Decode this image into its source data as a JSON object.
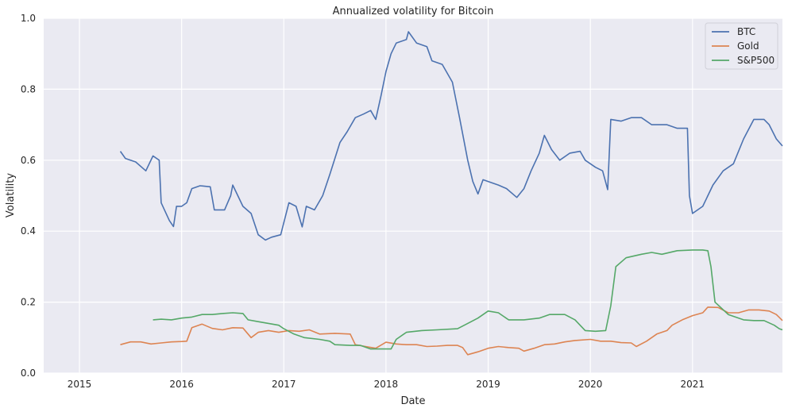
{
  "chart_data": {
    "type": "line",
    "title": "Annualized volatility for Bitcoin",
    "xlabel": "Date",
    "ylabel": "Volatility",
    "xlim": [
      2014.65,
      2021.88
    ],
    "ylim": [
      0.0,
      1.0
    ],
    "x_ticks": [
      "2015",
      "2016",
      "2017",
      "2018",
      "2019",
      "2020",
      "2021"
    ],
    "y_ticks": [
      "0.0",
      "0.2",
      "0.4",
      "0.6",
      "0.8",
      "1.0"
    ],
    "grid": true,
    "legend_position": "top-right",
    "series": [
      {
        "name": "BTC",
        "color": "#4c72b0",
        "points": [
          [
            2015.4,
            0.625
          ],
          [
            2015.45,
            0.605
          ],
          [
            2015.55,
            0.595
          ],
          [
            2015.65,
            0.57
          ],
          [
            2015.72,
            0.612
          ],
          [
            2015.78,
            0.6
          ],
          [
            2015.8,
            0.48
          ],
          [
            2015.88,
            0.43
          ],
          [
            2015.92,
            0.413
          ],
          [
            2015.95,
            0.47
          ],
          [
            2016.0,
            0.47
          ],
          [
            2016.05,
            0.48
          ],
          [
            2016.1,
            0.52
          ],
          [
            2016.18,
            0.528
          ],
          [
            2016.28,
            0.525
          ],
          [
            2016.32,
            0.46
          ],
          [
            2016.42,
            0.46
          ],
          [
            2016.48,
            0.5
          ],
          [
            2016.5,
            0.53
          ],
          [
            2016.55,
            0.5
          ],
          [
            2016.6,
            0.47
          ],
          [
            2016.68,
            0.45
          ],
          [
            2016.75,
            0.39
          ],
          [
            2016.82,
            0.375
          ],
          [
            2016.88,
            0.383
          ],
          [
            2016.97,
            0.39
          ],
          [
            2017.05,
            0.48
          ],
          [
            2017.12,
            0.47
          ],
          [
            2017.18,
            0.412
          ],
          [
            2017.22,
            0.47
          ],
          [
            2017.3,
            0.46
          ],
          [
            2017.38,
            0.5
          ],
          [
            2017.45,
            0.56
          ],
          [
            2017.55,
            0.65
          ],
          [
            2017.62,
            0.68
          ],
          [
            2017.7,
            0.72
          ],
          [
            2017.78,
            0.73
          ],
          [
            2017.85,
            0.74
          ],
          [
            2017.9,
            0.715
          ],
          [
            2017.95,
            0.78
          ],
          [
            2018.0,
            0.85
          ],
          [
            2018.05,
            0.9
          ],
          [
            2018.1,
            0.93
          ],
          [
            2018.2,
            0.94
          ],
          [
            2018.22,
            0.962
          ],
          [
            2018.3,
            0.93
          ],
          [
            2018.4,
            0.92
          ],
          [
            2018.45,
            0.88
          ],
          [
            2018.55,
            0.87
          ],
          [
            2018.65,
            0.82
          ],
          [
            2018.72,
            0.72
          ],
          [
            2018.8,
            0.6
          ],
          [
            2018.85,
            0.54
          ],
          [
            2018.9,
            0.505
          ],
          [
            2018.95,
            0.545
          ],
          [
            2019.0,
            0.54
          ],
          [
            2019.1,
            0.53
          ],
          [
            2019.18,
            0.52
          ],
          [
            2019.28,
            0.495
          ],
          [
            2019.35,
            0.52
          ],
          [
            2019.42,
            0.57
          ],
          [
            2019.5,
            0.62
          ],
          [
            2019.55,
            0.67
          ],
          [
            2019.62,
            0.63
          ],
          [
            2019.7,
            0.6
          ],
          [
            2019.8,
            0.62
          ],
          [
            2019.9,
            0.625
          ],
          [
            2019.95,
            0.6
          ],
          [
            2020.05,
            0.58
          ],
          [
            2020.12,
            0.57
          ],
          [
            2020.17,
            0.517
          ],
          [
            2020.2,
            0.715
          ],
          [
            2020.3,
            0.71
          ],
          [
            2020.4,
            0.72
          ],
          [
            2020.5,
            0.72
          ],
          [
            2020.6,
            0.7
          ],
          [
            2020.75,
            0.7
          ],
          [
            2020.85,
            0.69
          ],
          [
            2020.95,
            0.69
          ],
          [
            2020.97,
            0.5
          ],
          [
            2021.0,
            0.45
          ],
          [
            2021.1,
            0.47
          ],
          [
            2021.2,
            0.53
          ],
          [
            2021.3,
            0.57
          ],
          [
            2021.4,
            0.59
          ],
          [
            2021.5,
            0.66
          ],
          [
            2021.6,
            0.715
          ],
          [
            2021.7,
            0.715
          ],
          [
            2021.75,
            0.7
          ],
          [
            2021.82,
            0.66
          ],
          [
            2021.88,
            0.64
          ]
        ]
      },
      {
        "name": "Gold",
        "color": "#dd8452",
        "points": [
          [
            2015.4,
            0.08
          ],
          [
            2015.5,
            0.088
          ],
          [
            2015.6,
            0.088
          ],
          [
            2015.7,
            0.082
          ],
          [
            2015.8,
            0.085
          ],
          [
            2015.9,
            0.088
          ],
          [
            2016.0,
            0.089
          ],
          [
            2016.05,
            0.09
          ],
          [
            2016.1,
            0.128
          ],
          [
            2016.2,
            0.138
          ],
          [
            2016.3,
            0.126
          ],
          [
            2016.4,
            0.122
          ],
          [
            2016.5,
            0.128
          ],
          [
            2016.6,
            0.127
          ],
          [
            2016.68,
            0.1
          ],
          [
            2016.75,
            0.115
          ],
          [
            2016.85,
            0.12
          ],
          [
            2016.95,
            0.115
          ],
          [
            2017.05,
            0.12
          ],
          [
            2017.15,
            0.118
          ],
          [
            2017.25,
            0.122
          ],
          [
            2017.35,
            0.11
          ],
          [
            2017.5,
            0.112
          ],
          [
            2017.65,
            0.11
          ],
          [
            2017.7,
            0.08
          ],
          [
            2017.8,
            0.075
          ],
          [
            2017.9,
            0.07
          ],
          [
            2018.0,
            0.087
          ],
          [
            2018.1,
            0.082
          ],
          [
            2018.2,
            0.08
          ],
          [
            2018.3,
            0.08
          ],
          [
            2018.4,
            0.075
          ],
          [
            2018.5,
            0.076
          ],
          [
            2018.6,
            0.078
          ],
          [
            2018.7,
            0.078
          ],
          [
            2018.75,
            0.072
          ],
          [
            2018.8,
            0.052
          ],
          [
            2018.9,
            0.06
          ],
          [
            2019.0,
            0.07
          ],
          [
            2019.1,
            0.075
          ],
          [
            2019.2,
            0.072
          ],
          [
            2019.3,
            0.07
          ],
          [
            2019.35,
            0.062
          ],
          [
            2019.45,
            0.07
          ],
          [
            2019.55,
            0.08
          ],
          [
            2019.65,
            0.082
          ],
          [
            2019.75,
            0.088
          ],
          [
            2019.85,
            0.092
          ],
          [
            2020.0,
            0.095
          ],
          [
            2020.1,
            0.09
          ],
          [
            2020.2,
            0.09
          ],
          [
            2020.3,
            0.086
          ],
          [
            2020.4,
            0.085
          ],
          [
            2020.45,
            0.075
          ],
          [
            2020.55,
            0.09
          ],
          [
            2020.65,
            0.11
          ],
          [
            2020.75,
            0.12
          ],
          [
            2020.8,
            0.135
          ],
          [
            2020.9,
            0.15
          ],
          [
            2021.0,
            0.162
          ],
          [
            2021.1,
            0.17
          ],
          [
            2021.15,
            0.186
          ],
          [
            2021.25,
            0.185
          ],
          [
            2021.35,
            0.17
          ],
          [
            2021.45,
            0.17
          ],
          [
            2021.55,
            0.178
          ],
          [
            2021.65,
            0.178
          ],
          [
            2021.75,
            0.175
          ],
          [
            2021.82,
            0.165
          ],
          [
            2021.88,
            0.148
          ]
        ]
      },
      {
        "name": "S&P500",
        "color": "#55a868",
        "points": [
          [
            2015.72,
            0.15
          ],
          [
            2015.8,
            0.152
          ],
          [
            2015.9,
            0.15
          ],
          [
            2016.0,
            0.155
          ],
          [
            2016.1,
            0.158
          ],
          [
            2016.2,
            0.165
          ],
          [
            2016.3,
            0.165
          ],
          [
            2016.4,
            0.168
          ],
          [
            2016.5,
            0.17
          ],
          [
            2016.6,
            0.168
          ],
          [
            2016.65,
            0.15
          ],
          [
            2016.75,
            0.145
          ],
          [
            2016.85,
            0.14
          ],
          [
            2016.95,
            0.135
          ],
          [
            2017.0,
            0.125
          ],
          [
            2017.1,
            0.11
          ],
          [
            2017.2,
            0.1
          ],
          [
            2017.35,
            0.095
          ],
          [
            2017.45,
            0.09
          ],
          [
            2017.5,
            0.08
          ],
          [
            2017.65,
            0.078
          ],
          [
            2017.75,
            0.078
          ],
          [
            2017.85,
            0.068
          ],
          [
            2017.95,
            0.068
          ],
          [
            2018.05,
            0.068
          ],
          [
            2018.1,
            0.095
          ],
          [
            2018.2,
            0.115
          ],
          [
            2018.35,
            0.12
          ],
          [
            2018.5,
            0.122
          ],
          [
            2018.7,
            0.125
          ],
          [
            2018.8,
            0.14
          ],
          [
            2018.9,
            0.155
          ],
          [
            2019.0,
            0.175
          ],
          [
            2019.1,
            0.17
          ],
          [
            2019.2,
            0.15
          ],
          [
            2019.35,
            0.15
          ],
          [
            2019.5,
            0.155
          ],
          [
            2019.6,
            0.165
          ],
          [
            2019.75,
            0.165
          ],
          [
            2019.85,
            0.15
          ],
          [
            2019.95,
            0.12
          ],
          [
            2020.05,
            0.118
          ],
          [
            2020.15,
            0.12
          ],
          [
            2020.2,
            0.19
          ],
          [
            2020.25,
            0.3
          ],
          [
            2020.35,
            0.325
          ],
          [
            2020.5,
            0.335
          ],
          [
            2020.6,
            0.34
          ],
          [
            2020.7,
            0.335
          ],
          [
            2020.85,
            0.345
          ],
          [
            2021.0,
            0.347
          ],
          [
            2021.1,
            0.347
          ],
          [
            2021.15,
            0.345
          ],
          [
            2021.18,
            0.3
          ],
          [
            2021.22,
            0.2
          ],
          [
            2021.35,
            0.165
          ],
          [
            2021.5,
            0.15
          ],
          [
            2021.6,
            0.148
          ],
          [
            2021.7,
            0.148
          ],
          [
            2021.8,
            0.135
          ],
          [
            2021.85,
            0.125
          ],
          [
            2021.88,
            0.122
          ]
        ]
      }
    ]
  }
}
